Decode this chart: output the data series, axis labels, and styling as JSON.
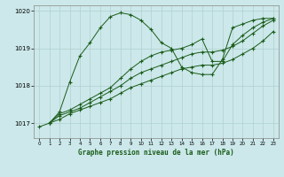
{
  "title": "Graphe pression niveau de la mer (hPa)",
  "bg_color": "#cce8ea",
  "grid_color": "#b0d0d0",
  "line_color": "#1a5c1a",
  "xlim": [
    -0.5,
    23.5
  ],
  "ylim": [
    1016.6,
    1020.15
  ],
  "yticks": [
    1017,
    1018,
    1019,
    1020
  ],
  "xticks": [
    0,
    1,
    2,
    3,
    4,
    5,
    6,
    7,
    8,
    9,
    10,
    11,
    12,
    13,
    14,
    15,
    16,
    17,
    18,
    19,
    20,
    21,
    22,
    23
  ],
  "series": [
    {
      "x": [
        1,
        2,
        3,
        4,
        5,
        6,
        7,
        8,
        9,
        10,
        11,
        12,
        13,
        14,
        15,
        16,
        17,
        18,
        19,
        20,
        21,
        22,
        23
      ],
      "y": [
        1017.0,
        1017.3,
        1018.1,
        1018.8,
        1019.15,
        1019.55,
        1019.85,
        1019.95,
        1019.9,
        1019.75,
        1019.5,
        1019.15,
        1019.0,
        1018.5,
        1018.35,
        1018.3,
        1018.3,
        1018.7,
        1019.55,
        1019.65,
        1019.75,
        1019.8,
        1019.8
      ]
    },
    {
      "x": [
        1,
        2,
        3,
        4,
        5,
        6,
        7,
        8,
        9,
        10,
        11,
        12,
        13,
        14,
        15,
        16,
        17,
        18,
        19,
        20,
        21,
        22,
        23
      ],
      "y": [
        1017.0,
        1017.25,
        1017.35,
        1017.5,
        1017.65,
        1017.8,
        1017.95,
        1018.2,
        1018.45,
        1018.65,
        1018.8,
        1018.9,
        1018.95,
        1019.0,
        1019.1,
        1019.25,
        1018.65,
        1018.65,
        1019.1,
        1019.35,
        1019.55,
        1019.7,
        1019.8
      ]
    },
    {
      "x": [
        1,
        2,
        3,
        4,
        5,
        6,
        7,
        8,
        9,
        10,
        11,
        12,
        13,
        14,
        15,
        16,
        17,
        18,
        19,
        20,
        21,
        22,
        23
      ],
      "y": [
        1017.0,
        1017.2,
        1017.3,
        1017.4,
        1017.55,
        1017.7,
        1017.85,
        1018.0,
        1018.2,
        1018.35,
        1018.45,
        1018.55,
        1018.65,
        1018.75,
        1018.85,
        1018.9,
        1018.9,
        1018.95,
        1019.05,
        1019.2,
        1019.4,
        1019.6,
        1019.75
      ]
    },
    {
      "x": [
        0,
        1,
        2,
        3,
        4,
        5,
        6,
        7,
        8,
        9,
        10,
        11,
        12,
        13,
        14,
        15,
        16,
        17,
        18,
        19,
        20,
        21,
        22,
        23
      ],
      "y": [
        1016.9,
        1017.0,
        1017.1,
        1017.25,
        1017.35,
        1017.45,
        1017.55,
        1017.65,
        1017.8,
        1017.95,
        1018.05,
        1018.15,
        1018.25,
        1018.35,
        1018.45,
        1018.5,
        1018.55,
        1018.55,
        1018.6,
        1018.7,
        1018.85,
        1019.0,
        1019.2,
        1019.45
      ]
    }
  ]
}
